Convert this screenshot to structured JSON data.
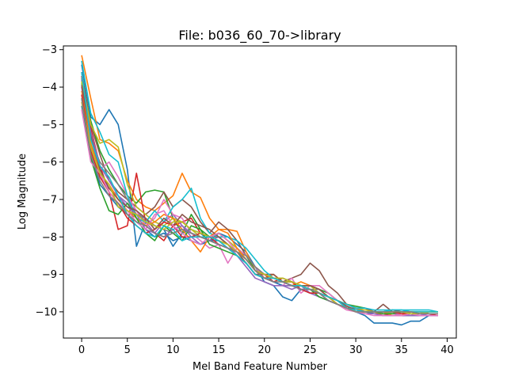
{
  "chart_data": {
    "type": "line",
    "title": "File: b036_60_70->library",
    "xlabel": "Mel Band Feature Number",
    "ylabel": "Log Magnitude",
    "xlim": [
      -2,
      41
    ],
    "ylim": [
      -10.7,
      -2.9
    ],
    "xticks": [
      0,
      5,
      10,
      15,
      20,
      25,
      30,
      35,
      40
    ],
    "yticks": [
      -3,
      -4,
      -5,
      -6,
      -7,
      -8,
      -9,
      -10
    ],
    "xtick_labels": [
      "0",
      "5",
      "10",
      "15",
      "20",
      "25",
      "30",
      "35",
      "40"
    ],
    "ytick_labels": [
      "−3",
      "−4",
      "−5",
      "−6",
      "−7",
      "−8",
      "−9",
      "−10"
    ],
    "grid": false,
    "series": [
      {
        "color": "#1f77b4",
        "values": [
          -3.4,
          -4.8,
          -5.0,
          -4.6,
          -5.0,
          -6.2,
          -8.25,
          -7.6,
          -7.7,
          -7.8,
          -8.25,
          -7.9,
          -7.8,
          -7.9,
          -8.1,
          -7.9,
          -8.0,
          -8.2,
          -8.4,
          -8.8,
          -9.2,
          -9.3,
          -9.6,
          -9.7,
          -9.4,
          -9.5,
          -9.5,
          -9.7,
          -9.8,
          -9.9,
          -10.0,
          -10.1,
          -10.3,
          -10.3,
          -10.3,
          -10.35,
          -10.25,
          -10.25,
          -10.1,
          -10.1
        ]
      },
      {
        "color": "#ff7f0e",
        "values": [
          -3.15,
          -4.3,
          -5.4,
          -5.5,
          -5.7,
          -6.5,
          -7.0,
          -7.2,
          -7.3,
          -7.1,
          -6.9,
          -6.3,
          -6.8,
          -6.95,
          -7.5,
          -7.8,
          -7.8,
          -7.85,
          -8.4,
          -8.9,
          -9.1,
          -9.0,
          -9.2,
          -9.3,
          -9.2,
          -9.3,
          -9.4,
          -9.6,
          -9.7,
          -9.8,
          -9.9,
          -10.0,
          -10.0,
          -10.1,
          -10.1,
          -10.1,
          -10.0,
          -10.05,
          -10.0,
          -10.0
        ]
      },
      {
        "color": "#2ca02c",
        "values": [
          -3.9,
          -4.9,
          -5.7,
          -6.2,
          -6.6,
          -6.9,
          -7.1,
          -6.8,
          -6.75,
          -6.8,
          -7.5,
          -7.9,
          -7.4,
          -7.8,
          -8.0,
          -7.9,
          -8.1,
          -8.3,
          -8.5,
          -8.9,
          -9.0,
          -9.1,
          -9.2,
          -9.2,
          -9.3,
          -9.3,
          -9.4,
          -9.5,
          -9.7,
          -9.8,
          -9.85,
          -9.9,
          -10.0,
          -10.0,
          -10.0,
          -10.0,
          -10.0,
          -10.0,
          -10.05,
          -10.05
        ]
      },
      {
        "color": "#d62728",
        "values": [
          -3.7,
          -5.1,
          -6.1,
          -6.8,
          -7.8,
          -7.7,
          -6.3,
          -7.6,
          -7.9,
          -8.1,
          -7.7,
          -7.6,
          -7.5,
          -7.9,
          -8.0,
          -8.1,
          -8.2,
          -8.4,
          -8.6,
          -8.9,
          -9.0,
          -9.2,
          -9.1,
          -9.2,
          -9.3,
          -9.4,
          -9.5,
          -9.6,
          -9.8,
          -9.9,
          -10.0,
          -10.0,
          -10.0,
          -10.05,
          -10.1,
          -10.1,
          -10.1,
          -10.1,
          -10.1,
          -10.1
        ]
      },
      {
        "color": "#9467bd",
        "values": [
          -3.8,
          -5.3,
          -6.4,
          -6.7,
          -6.9,
          -7.1,
          -7.3,
          -7.6,
          -7.9,
          -7.6,
          -7.4,
          -7.7,
          -8.0,
          -8.2,
          -8.1,
          -8.0,
          -8.2,
          -8.5,
          -8.7,
          -9.0,
          -9.1,
          -9.2,
          -9.3,
          -9.4,
          -9.3,
          -9.5,
          -9.6,
          -9.7,
          -9.8,
          -9.9,
          -10.0,
          -10.0,
          -10.0,
          -10.0,
          -10.05,
          -10.05,
          -10.1,
          -10.05,
          -10.1,
          -10.1
        ]
      },
      {
        "color": "#8c564b",
        "values": [
          -3.6,
          -5.0,
          -5.8,
          -6.5,
          -6.8,
          -7.0,
          -7.2,
          -7.4,
          -7.2,
          -6.8,
          -7.2,
          -7.0,
          -7.2,
          -7.6,
          -7.9,
          -7.6,
          -7.8,
          -8.1,
          -8.5,
          -8.8,
          -9.0,
          -9.0,
          -9.2,
          -9.1,
          -9.0,
          -8.7,
          -8.9,
          -9.3,
          -9.5,
          -9.8,
          -9.9,
          -9.9,
          -10.0,
          -9.8,
          -10.0,
          -10.05,
          -10.0,
          -10.05,
          -10.05,
          -10.05
        ]
      },
      {
        "color": "#e377c2",
        "values": [
          -4.0,
          -5.6,
          -6.2,
          -6.0,
          -6.4,
          -6.9,
          -7.3,
          -7.7,
          -7.5,
          -7.0,
          -7.4,
          -7.5,
          -7.9,
          -8.1,
          -8.3,
          -8.2,
          -8.7,
          -8.3,
          -8.5,
          -8.8,
          -9.1,
          -9.2,
          -9.3,
          -9.1,
          -9.5,
          -9.3,
          -9.3,
          -9.5,
          -9.7,
          -9.85,
          -9.95,
          -10.0,
          -10.05,
          -10.1,
          -10.1,
          -10.05,
          -10.05,
          -10.1,
          -10.1,
          -10.1
        ]
      },
      {
        "color": "#7f7f7f",
        "values": [
          -3.75,
          -5.4,
          -6.0,
          -6.3,
          -6.6,
          -7.0,
          -7.4,
          -7.5,
          -7.7,
          -7.8,
          -7.9,
          -7.8,
          -7.9,
          -8.0,
          -8.0,
          -8.0,
          -8.2,
          -8.4,
          -8.5,
          -8.8,
          -9.0,
          -9.1,
          -9.1,
          -9.2,
          -9.3,
          -9.4,
          -9.4,
          -9.6,
          -9.7,
          -9.9,
          -9.9,
          -10.0,
          -10.0,
          -10.0,
          -10.0,
          -10.0,
          -10.05,
          -10.05,
          -10.05,
          -10.05
        ]
      },
      {
        "color": "#bcbd22",
        "values": [
          -3.85,
          -5.0,
          -5.5,
          -5.4,
          -5.6,
          -6.6,
          -7.2,
          -7.4,
          -7.6,
          -7.7,
          -7.5,
          -7.6,
          -7.8,
          -8.0,
          -8.0,
          -7.9,
          -8.1,
          -8.3,
          -8.6,
          -8.9,
          -9.0,
          -9.1,
          -9.1,
          -9.2,
          -9.3,
          -9.3,
          -9.5,
          -9.6,
          -9.7,
          -9.8,
          -9.9,
          -9.95,
          -10.0,
          -10.0,
          -10.05,
          -10.0,
          -10.0,
          -10.0,
          -10.0,
          -10.0
        ]
      },
      {
        "color": "#17becf",
        "values": [
          -3.3,
          -4.7,
          -5.2,
          -5.8,
          -6.0,
          -6.9,
          -7.5,
          -7.6,
          -7.3,
          -7.6,
          -7.2,
          -7.0,
          -6.7,
          -7.5,
          -7.9,
          -8.0,
          -8.0,
          -8.1,
          -8.3,
          -8.6,
          -8.9,
          -9.1,
          -9.2,
          -9.2,
          -9.3,
          -9.4,
          -9.5,
          -9.6,
          -9.7,
          -9.8,
          -9.9,
          -9.9,
          -9.95,
          -9.95,
          -9.95,
          -9.95,
          -9.95,
          -9.95,
          -9.95,
          -10.0
        ]
      },
      {
        "color": "#1f77b4",
        "values": [
          -4.5,
          -5.8,
          -6.6,
          -6.9,
          -7.2,
          -7.4,
          -7.6,
          -7.8,
          -8.0,
          -7.9,
          -8.1,
          -8.0,
          -8.1,
          -8.2,
          -8.1,
          -8.1,
          -8.3,
          -8.5,
          -8.7,
          -9.0,
          -9.1,
          -9.2,
          -9.3,
          -9.3,
          -9.4,
          -9.4,
          -9.5,
          -9.7,
          -9.8,
          -9.9,
          -10.0,
          -10.0,
          -10.05,
          -10.1,
          -10.1,
          -10.1,
          -10.1,
          -10.1,
          -10.1,
          -10.1
        ]
      },
      {
        "color": "#ff7f0e",
        "values": [
          -4.1,
          -5.5,
          -6.3,
          -6.6,
          -7.0,
          -7.3,
          -7.5,
          -7.7,
          -7.6,
          -7.4,
          -7.5,
          -7.8,
          -8.1,
          -8.4,
          -8.0,
          -7.8,
          -7.9,
          -8.3,
          -8.6,
          -8.9,
          -9.0,
          -9.1,
          -9.2,
          -9.3,
          -9.3,
          -9.4,
          -9.5,
          -9.6,
          -9.8,
          -9.9,
          -10.0,
          -10.0,
          -10.0,
          -10.0,
          -10.1,
          -10.1,
          -10.0,
          -10.0,
          -10.05,
          -10.05
        ]
      },
      {
        "color": "#2ca02c",
        "values": [
          -4.3,
          -5.9,
          -6.7,
          -7.3,
          -7.4,
          -7.1,
          -7.5,
          -7.9,
          -8.1,
          -7.7,
          -7.9,
          -8.1,
          -7.7,
          -7.8,
          -8.2,
          -8.3,
          -8.4,
          -8.5,
          -8.7,
          -9.0,
          -9.1,
          -9.1,
          -9.2,
          -9.3,
          -9.3,
          -9.4,
          -9.6,
          -9.7,
          -9.8,
          -9.9,
          -9.95,
          -10.0,
          -10.0,
          -10.05,
          -10.05,
          -10.0,
          -10.05,
          -10.05,
          -10.05,
          -10.05
        ]
      },
      {
        "color": "#d62728",
        "values": [
          -4.2,
          -5.7,
          -6.4,
          -6.8,
          -7.1,
          -7.5,
          -7.7,
          -7.9,
          -7.8,
          -7.6,
          -7.7,
          -8.0,
          -8.0,
          -7.9,
          -8.0,
          -8.2,
          -8.3,
          -8.4,
          -8.6,
          -8.9,
          -9.1,
          -9.1,
          -9.2,
          -9.2,
          -9.4,
          -9.5,
          -9.5,
          -9.6,
          -9.8,
          -9.9,
          -10.0,
          -10.0,
          -10.0,
          -10.0,
          -10.0,
          -10.05,
          -10.05,
          -10.05,
          -10.05,
          -10.1
        ]
      },
      {
        "color": "#9467bd",
        "values": [
          -4.0,
          -5.2,
          -6.1,
          -6.5,
          -6.9,
          -7.2,
          -7.4,
          -7.8,
          -7.9,
          -8.0,
          -7.8,
          -7.7,
          -7.9,
          -8.0,
          -8.1,
          -8.2,
          -8.3,
          -8.5,
          -8.8,
          -9.1,
          -9.2,
          -9.3,
          -9.3,
          -9.3,
          -9.4,
          -9.4,
          -9.5,
          -9.7,
          -9.8,
          -9.9,
          -10.0,
          -10.05,
          -10.05,
          -10.1,
          -10.1,
          -10.1,
          -10.1,
          -10.1,
          -10.1,
          -10.1
        ]
      },
      {
        "color": "#8c564b",
        "values": [
          -3.95,
          -5.3,
          -6.2,
          -6.7,
          -7.0,
          -7.2,
          -7.3,
          -7.5,
          -7.8,
          -7.5,
          -7.7,
          -7.4,
          -7.6,
          -7.7,
          -7.8,
          -8.0,
          -8.2,
          -8.4,
          -8.7,
          -9.0,
          -9.0,
          -9.1,
          -9.2,
          -9.3,
          -9.3,
          -9.3,
          -9.4,
          -9.6,
          -9.7,
          -9.85,
          -9.95,
          -10.0,
          -10.0,
          -10.0,
          -9.95,
          -10.0,
          -10.0,
          -10.05,
          -10.05,
          -10.05
        ]
      },
      {
        "color": "#e377c2",
        "values": [
          -4.6,
          -6.0,
          -6.3,
          -6.8,
          -7.1,
          -7.3,
          -7.6,
          -7.8,
          -7.4,
          -7.3,
          -7.7,
          -7.9,
          -8.1,
          -8.2,
          -8.0,
          -7.9,
          -8.1,
          -8.4,
          -8.6,
          -8.9,
          -9.0,
          -9.1,
          -9.2,
          -9.3,
          -9.3,
          -9.4,
          -9.5,
          -9.7,
          -9.8,
          -9.95,
          -10.0,
          -10.05,
          -10.1,
          -10.1,
          -10.1,
          -10.1,
          -10.05,
          -10.1,
          -10.1,
          -10.1
        ]
      },
      {
        "color": "#bcbd22",
        "values": [
          -4.4,
          -5.6,
          -6.3,
          -6.6,
          -7.2,
          -7.3,
          -7.4,
          -7.6,
          -7.7,
          -7.8,
          -7.6,
          -7.6,
          -7.8,
          -7.9,
          -8.0,
          -8.1,
          -8.2,
          -8.4,
          -8.6,
          -8.9,
          -9.0,
          -9.1,
          -9.2,
          -9.2,
          -9.3,
          -9.4,
          -9.5,
          -9.6,
          -9.8,
          -9.9,
          -10.0,
          -10.0,
          -10.0,
          -10.0,
          -10.0,
          -10.0,
          -10.05,
          -10.05,
          -10.0,
          -10.0
        ]
      },
      {
        "color": "#17becf",
        "values": [
          -3.6,
          -5.4,
          -6.1,
          -6.4,
          -6.9,
          -7.4,
          -7.7,
          -7.9,
          -8.0,
          -7.7,
          -7.8,
          -8.1,
          -8.0,
          -8.0,
          -8.0,
          -8.1,
          -8.3,
          -8.5,
          -8.7,
          -9.0,
          -9.1,
          -9.1,
          -9.2,
          -9.3,
          -9.3,
          -9.4,
          -9.5,
          -9.6,
          -9.7,
          -9.9,
          -9.95,
          -10.0,
          -10.0,
          -10.0,
          -9.95,
          -9.95,
          -10.0,
          -10.0,
          -10.0,
          -10.0
        ]
      },
      {
        "color": "#7f7f7f",
        "values": [
          -4.3,
          -5.8,
          -6.5,
          -6.9,
          -7.1,
          -7.4,
          -7.6,
          -7.7,
          -7.9,
          -8.0,
          -7.9,
          -7.8,
          -7.9,
          -8.0,
          -8.1,
          -8.2,
          -8.3,
          -8.4,
          -8.6,
          -8.9,
          -9.1,
          -9.2,
          -9.2,
          -9.3,
          -9.4,
          -9.4,
          -9.5,
          -9.7,
          -9.8,
          -9.9,
          -10.0,
          -10.0,
          -10.0,
          -10.0,
          -10.0,
          -10.0,
          -10.0,
          -10.05,
          -10.05,
          -10.05
        ]
      }
    ]
  }
}
